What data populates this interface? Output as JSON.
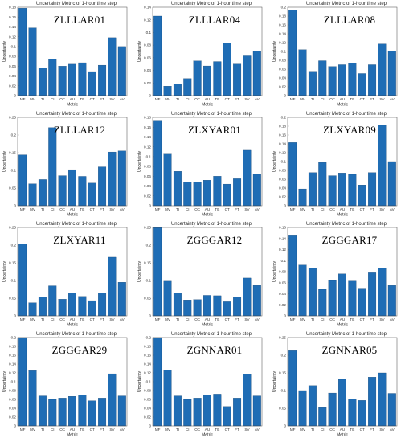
{
  "chart_data": [
    {
      "type": "bar",
      "title": "Uncertainty Metric of 1-hour time step",
      "annotation": "ZLLLAR01",
      "xlabel": "Metric",
      "ylabel": "Uncertainty",
      "categories": [
        "MF",
        "MV",
        "TI",
        "CI",
        "OC",
        "AU",
        "TE",
        "CT",
        "FT",
        "SV",
        "AV"
      ],
      "values": [
        0.178,
        0.138,
        0.056,
        0.074,
        0.06,
        0.064,
        0.067,
        0.049,
        0.062,
        0.118,
        0.1
      ],
      "ylim": [
        0,
        0.18
      ],
      "yticks": [
        "0",
        "0.02",
        "0.04",
        "0.06",
        "0.08",
        "0.1",
        "0.12",
        "0.14",
        "0.16",
        "0.18"
      ]
    },
    {
      "type": "bar",
      "title": "Uncertainty Metric of 1-hour time step",
      "annotation": "ZLLLAR04",
      "xlabel": "Metric",
      "ylabel": "Uncertainty",
      "categories": [
        "MF",
        "MV",
        "TI",
        "CI",
        "OC",
        "AU",
        "TE",
        "CT",
        "FT",
        "SV",
        "AV"
      ],
      "values": [
        0.126,
        0.015,
        0.018,
        0.027,
        0.055,
        0.047,
        0.054,
        0.083,
        0.05,
        0.063,
        0.071
      ],
      "ylim": [
        0,
        0.14
      ],
      "yticks": [
        "0",
        "0.02",
        "0.04",
        "0.06",
        "0.08",
        "0.1",
        "0.12",
        "0.14"
      ]
    },
    {
      "type": "bar",
      "title": "Uncertainty Metric of 1-hour time step",
      "annotation": "ZLLLAR08",
      "xlabel": "Metric",
      "ylabel": "Uncertainty",
      "categories": [
        "MF",
        "MV",
        "TI",
        "CI",
        "OC",
        "AU",
        "TE",
        "CT",
        "FT",
        "SV",
        "AV"
      ],
      "values": [
        0.193,
        0.104,
        0.055,
        0.079,
        0.066,
        0.07,
        0.073,
        0.05,
        0.07,
        0.117,
        0.101
      ],
      "ylim": [
        0,
        0.2
      ],
      "yticks": [
        "0",
        "0.02",
        "0.04",
        "0.06",
        "0.08",
        "0.1",
        "0.12",
        "0.14",
        "0.16",
        "0.18",
        "0.2"
      ]
    },
    {
      "type": "bar",
      "title": "Uncertainty Metric of 1-hour time step",
      "annotation": "ZLLLAR12",
      "xlabel": "Metric",
      "ylabel": "Uncertainty",
      "categories": [
        "MF",
        "MV",
        "TI",
        "CI",
        "OC",
        "AU",
        "TE",
        "CT",
        "FT",
        "SV",
        "AV"
      ],
      "values": [
        0.144,
        0.062,
        0.074,
        0.221,
        0.085,
        0.102,
        0.083,
        0.064,
        0.11,
        0.152,
        0.155
      ],
      "ylim": [
        0,
        0.25
      ],
      "yticks": [
        "0",
        "0.05",
        "0.1",
        "0.15",
        "0.2",
        "0.25"
      ]
    },
    {
      "type": "bar",
      "title": "Uncertainty Metric of 1-hour time step",
      "annotation": "ZLXYAR01",
      "xlabel": "Metric",
      "ylabel": "Uncertainty",
      "categories": [
        "MF",
        "MV",
        "TI",
        "CI",
        "OC",
        "AU",
        "TE",
        "CT",
        "FT",
        "SV",
        "AV"
      ],
      "values": [
        0.174,
        0.105,
        0.07,
        0.048,
        0.048,
        0.052,
        0.06,
        0.044,
        0.055,
        0.113,
        0.064
      ],
      "ylim": [
        0,
        0.18
      ],
      "yticks": [
        "0",
        "0.02",
        "0.04",
        "0.06",
        "0.08",
        "0.1",
        "0.12",
        "0.14",
        "0.16",
        "0.18"
      ]
    },
    {
      "type": "bar",
      "title": "Uncertainty Metric of 1-hour time step",
      "annotation": "ZLXYAR09",
      "xlabel": "Metric",
      "ylabel": "Uncertainty",
      "categories": [
        "MF",
        "MV",
        "TI",
        "CI",
        "OC",
        "AU",
        "TE",
        "CT",
        "FT",
        "SV",
        "AV"
      ],
      "values": [
        0.143,
        0.038,
        0.075,
        0.098,
        0.068,
        0.074,
        0.071,
        0.047,
        0.075,
        0.182,
        0.1
      ],
      "ylim": [
        0,
        0.2
      ],
      "yticks": [
        "0",
        "0.02",
        "0.04",
        "0.06",
        "0.08",
        "0.1",
        "0.12",
        "0.14",
        "0.16",
        "0.18",
        "0.2"
      ]
    },
    {
      "type": "bar",
      "title": "Uncertainty Metric of 1-hour time step",
      "annotation": "ZLXYAR11",
      "xlabel": "Metric",
      "ylabel": "Uncertainty",
      "categories": [
        "MF",
        "MV",
        "TI",
        "CI",
        "OC",
        "AU",
        "TE",
        "CT",
        "FT",
        "SV",
        "AV"
      ],
      "values": [
        0.203,
        0.037,
        0.054,
        0.085,
        0.047,
        0.065,
        0.055,
        0.043,
        0.064,
        0.166,
        0.095
      ],
      "ylim": [
        0,
        0.25
      ],
      "yticks": [
        "0",
        "0.05",
        "0.1",
        "0.15",
        "0.2",
        "0.25"
      ]
    },
    {
      "type": "bar",
      "title": "Uncertainty Metric of 1-hour time step",
      "annotation": "ZGGGAR12",
      "xlabel": "Metric",
      "ylabel": "Uncertainty",
      "categories": [
        "MF",
        "MV",
        "TI",
        "CI",
        "OC",
        "AU",
        "TE",
        "CT",
        "FT",
        "SV",
        "AV"
      ],
      "values": [
        0.25,
        0.098,
        0.065,
        0.045,
        0.046,
        0.058,
        0.057,
        0.04,
        0.054,
        0.107,
        0.086
      ],
      "ylim": [
        0,
        0.25
      ],
      "yticks": [
        "0",
        "0.05",
        "0.1",
        "0.15",
        "0.2",
        "0.25"
      ]
    },
    {
      "type": "bar",
      "title": "Uncertainty Metric of 1-hour time step",
      "annotation": "ZGGGAR17",
      "xlabel": "Metric",
      "ylabel": "Uncertainty",
      "categories": [
        "MF",
        "MV",
        "TI",
        "CI",
        "OC",
        "AU",
        "TE",
        "CT",
        "FT",
        "SV",
        "AV"
      ],
      "values": [
        0.145,
        0.092,
        0.086,
        0.048,
        0.064,
        0.076,
        0.063,
        0.05,
        0.078,
        0.086,
        0.055
      ],
      "ylim": [
        0,
        0.16
      ],
      "yticks": [
        "0",
        "0.02",
        "0.04",
        "0.06",
        "0.08",
        "0.1",
        "0.12",
        "0.14",
        "0.16"
      ]
    },
    {
      "type": "bar",
      "title": "Uncertainty Metric of 1-hour time step",
      "annotation": "ZGGGAR29",
      "xlabel": "Metric",
      "ylabel": "Uncertainty",
      "categories": [
        "MF",
        "MV",
        "TI",
        "CI",
        "OC",
        "AU",
        "TE",
        "CT",
        "FT",
        "SV",
        "AV"
      ],
      "values": [
        0.2,
        0.125,
        0.068,
        0.06,
        0.063,
        0.067,
        0.07,
        0.057,
        0.063,
        0.118,
        0.068
      ],
      "ylim": [
        0,
        0.2
      ],
      "yticks": [
        "0",
        "0.02",
        "0.04",
        "0.06",
        "0.08",
        "0.1",
        "0.12",
        "0.14",
        "0.16",
        "0.18",
        "0.2"
      ]
    },
    {
      "type": "bar",
      "title": "Uncertainty Metric of 1-hour time step",
      "annotation": "ZGNNAR01",
      "xlabel": "Metric",
      "ylabel": "Uncertainty",
      "categories": [
        "MF",
        "MV",
        "TI",
        "CI",
        "OC",
        "AU",
        "TE",
        "CT",
        "FT",
        "SV",
        "AV"
      ],
      "values": [
        0.2,
        0.126,
        0.068,
        0.06,
        0.063,
        0.07,
        0.072,
        0.044,
        0.063,
        0.117,
        0.068
      ],
      "ylim": [
        0,
        0.2
      ],
      "yticks": [
        "0",
        "0.02",
        "0.04",
        "0.06",
        "0.08",
        "0.1",
        "0.12",
        "0.14",
        "0.16",
        "0.18",
        "0.2"
      ]
    },
    {
      "type": "bar",
      "title": "Uncertainty Metric of 1-hour time step",
      "annotation": "ZGNNAR05",
      "xlabel": "Metric",
      "ylabel": "Uncertainty",
      "categories": [
        "MF",
        "MV",
        "TI",
        "CI",
        "OC",
        "AU",
        "TE",
        "CT",
        "FT",
        "SV",
        "AV"
      ],
      "values": [
        0.213,
        0.1,
        0.114,
        0.052,
        0.093,
        0.132,
        0.076,
        0.072,
        0.138,
        0.15,
        0.092
      ],
      "ylim": [
        0,
        0.25
      ],
      "yticks": [
        "0",
        "0.05",
        "0.1",
        "0.15",
        "0.2",
        "0.25"
      ]
    }
  ],
  "colors": {
    "bar": "#1f6db5",
    "bar_edge": "#123f6b",
    "axis": "#444444"
  }
}
